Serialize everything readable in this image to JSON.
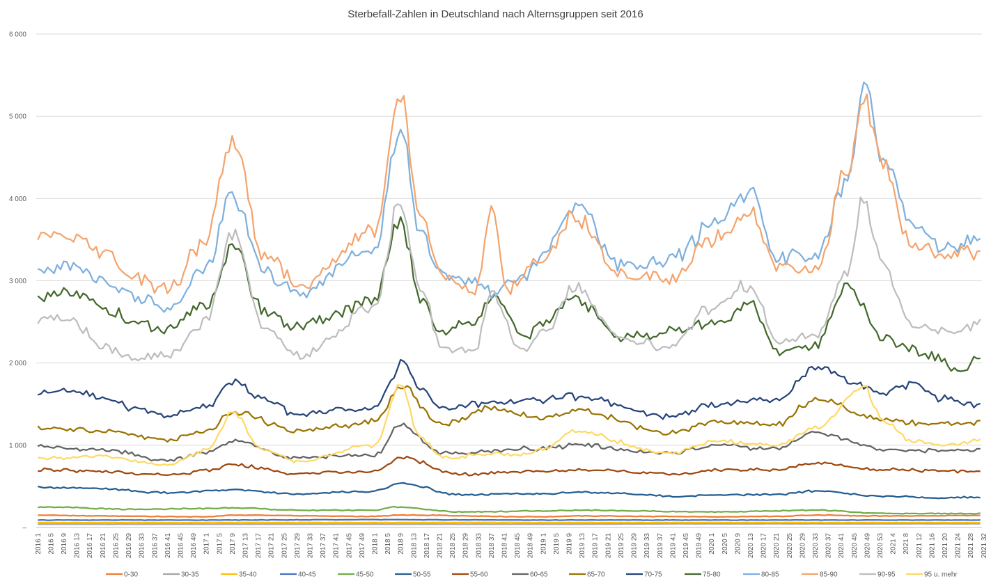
{
  "chart_data": {
    "type": "line",
    "title": "Sterbefall-Zahlen in Deutschland nach Alternsgruppen seit 2016",
    "xlabel": "",
    "ylabel": "",
    "ylim": [
      0,
      6000
    ],
    "yticks": [
      "–",
      "1 000",
      "2 000",
      "3 000",
      "4 000",
      "5 000",
      "6 000"
    ],
    "grid": true,
    "legend_position": "bottom",
    "x_tick_labels": [
      "2016 1",
      "2016 5",
      "2016 9",
      "2016 13",
      "2016 17",
      "2016 21",
      "2016 25",
      "2016 29",
      "2016 33",
      "2016 37",
      "2016 41",
      "2016 45",
      "2016 49",
      "2017 1",
      "2017 5",
      "2017 9",
      "2017 13",
      "2017 17",
      "2017 21",
      "2017 25",
      "2017 29",
      "2017 33",
      "2017 37",
      "2017 41",
      "2017 45",
      "2017 49",
      "2018 1",
      "2018 5",
      "2018 9",
      "2018 13",
      "2018 17",
      "2018 21",
      "2018 25",
      "2018 29",
      "2018 33",
      "2018 37",
      "2018 41",
      "2018 45",
      "2018 49",
      "2019 1",
      "2019 5",
      "2019 9",
      "2019 13",
      "2019 17",
      "2019 21",
      "2019 25",
      "2019 29",
      "2019 33",
      "2019 37",
      "2019 41",
      "2019 45",
      "2019 49",
      "2020 1",
      "2020 5",
      "2020 9",
      "2020 13",
      "2020 17",
      "2020 21",
      "2020 25",
      "2020 29",
      "2020 33",
      "2020 37",
      "2020 41",
      "2020 45",
      "2020 49",
      "2020 53",
      "2021 4",
      "2021 8",
      "2021 12",
      "2021 16",
      "2021 20",
      "2021 24",
      "2021 28",
      "2021 32"
    ],
    "series": [
      {
        "name": "0-30",
        "color": "#ED7D31",
        "anchors": [
          [
            0,
            150
          ],
          [
            20,
            140
          ],
          [
            52,
            130
          ],
          [
            60,
            150
          ],
          [
            104,
            135
          ],
          [
            112,
            150
          ],
          [
            156,
            130
          ],
          [
            166,
            140
          ],
          [
            209,
            130
          ],
          [
            228,
            135
          ],
          [
            240,
            150
          ],
          [
            261,
            140
          ],
          [
            291,
            145
          ]
        ]
      },
      {
        "name": "30-35",
        "color": "#A5A5A5",
        "anchors": [
          [
            0,
            40
          ],
          [
            52,
            40
          ],
          [
            104,
            40
          ],
          [
            156,
            40
          ],
          [
            209,
            45
          ],
          [
            261,
            45
          ],
          [
            291,
            45
          ]
        ]
      },
      {
        "name": "35-40",
        "color": "#FFC000",
        "anchors": [
          [
            0,
            60
          ],
          [
            52,
            60
          ],
          [
            104,
            60
          ],
          [
            156,
            60
          ],
          [
            209,
            60
          ],
          [
            261,
            60
          ],
          [
            291,
            60
          ]
        ]
      },
      {
        "name": "40-45",
        "color": "#4472C4",
        "anchors": [
          [
            0,
            90
          ],
          [
            52,
            90
          ],
          [
            104,
            95
          ],
          [
            156,
            90
          ],
          [
            209,
            90
          ],
          [
            261,
            90
          ],
          [
            291,
            90
          ]
        ]
      },
      {
        "name": "45-50",
        "color": "#70AD47",
        "anchors": [
          [
            0,
            250
          ],
          [
            30,
            220
          ],
          [
            52,
            230
          ],
          [
            60,
            240
          ],
          [
            80,
            210
          ],
          [
            104,
            210
          ],
          [
            110,
            250
          ],
          [
            130,
            190
          ],
          [
            156,
            200
          ],
          [
            166,
            210
          ],
          [
            209,
            190
          ],
          [
            240,
            210
          ],
          [
            261,
            170
          ],
          [
            291,
            170
          ]
        ]
      },
      {
        "name": "50-55",
        "color": "#255E91",
        "anchors": [
          [
            0,
            490
          ],
          [
            20,
            470
          ],
          [
            40,
            420
          ],
          [
            52,
            440
          ],
          [
            60,
            460
          ],
          [
            80,
            410
          ],
          [
            104,
            440
          ],
          [
            112,
            540
          ],
          [
            130,
            400
          ],
          [
            156,
            410
          ],
          [
            166,
            430
          ],
          [
            200,
            380
          ],
          [
            209,
            400
          ],
          [
            228,
            400
          ],
          [
            240,
            440
          ],
          [
            261,
            380
          ],
          [
            280,
            360
          ],
          [
            291,
            370
          ]
        ]
      },
      {
        "name": "55-60",
        "color": "#9E480E",
        "anchors": [
          [
            0,
            700
          ],
          [
            20,
            680
          ],
          [
            40,
            640
          ],
          [
            52,
            690
          ],
          [
            60,
            760
          ],
          [
            80,
            660
          ],
          [
            104,
            680
          ],
          [
            112,
            850
          ],
          [
            130,
            650
          ],
          [
            156,
            680
          ],
          [
            166,
            700
          ],
          [
            200,
            650
          ],
          [
            209,
            700
          ],
          [
            228,
            700
          ],
          [
            240,
            780
          ],
          [
            261,
            700
          ],
          [
            280,
            690
          ],
          [
            291,
            680
          ]
        ]
      },
      {
        "name": "60-65",
        "color": "#636363",
        "anchors": [
          [
            0,
            980
          ],
          [
            20,
            940
          ],
          [
            40,
            820
          ],
          [
            52,
            900
          ],
          [
            60,
            1050
          ],
          [
            80,
            850
          ],
          [
            104,
            880
          ],
          [
            112,
            1240
          ],
          [
            125,
            900
          ],
          [
            156,
            960
          ],
          [
            166,
            1000
          ],
          [
            195,
            900
          ],
          [
            209,
            1000
          ],
          [
            228,
            950
          ],
          [
            240,
            1150
          ],
          [
            261,
            950
          ],
          [
            280,
            930
          ],
          [
            291,
            950
          ]
        ]
      },
      {
        "name": "65-70",
        "color": "#997300",
        "anchors": [
          [
            0,
            1210
          ],
          [
            20,
            1180
          ],
          [
            40,
            1060
          ],
          [
            52,
            1160
          ],
          [
            60,
            1400
          ],
          [
            80,
            1180
          ],
          [
            104,
            1280
          ],
          [
            112,
            1700
          ],
          [
            125,
            1250
          ],
          [
            140,
            1450
          ],
          [
            156,
            1330
          ],
          [
            166,
            1420
          ],
          [
            195,
            1150
          ],
          [
            209,
            1290
          ],
          [
            228,
            1250
          ],
          [
            240,
            1550
          ],
          [
            261,
            1300
          ],
          [
            280,
            1250
          ],
          [
            291,
            1280
          ]
        ]
      },
      {
        "name": "70-75",
        "color": "#264478",
        "anchors": [
          [
            0,
            1620
          ],
          [
            10,
            1660
          ],
          [
            20,
            1580
          ],
          [
            30,
            1440
          ],
          [
            40,
            1360
          ],
          [
            52,
            1460
          ],
          [
            60,
            1780
          ],
          [
            70,
            1540
          ],
          [
            80,
            1380
          ],
          [
            104,
            1460
          ],
          [
            110,
            1800
          ],
          [
            112,
            2000
          ],
          [
            118,
            1700
          ],
          [
            125,
            1450
          ],
          [
            140,
            1520
          ],
          [
            156,
            1560
          ],
          [
            166,
            1590
          ],
          [
            195,
            1350
          ],
          [
            209,
            1500
          ],
          [
            228,
            1550
          ],
          [
            240,
            1920
          ],
          [
            261,
            1650
          ],
          [
            270,
            1740
          ],
          [
            280,
            1560
          ],
          [
            291,
            1500
          ]
        ]
      },
      {
        "name": "75-80",
        "color": "#43682B",
        "anchors": [
          [
            0,
            2800
          ],
          [
            10,
            2850
          ],
          [
            20,
            2700
          ],
          [
            30,
            2480
          ],
          [
            40,
            2400
          ],
          [
            52,
            2700
          ],
          [
            60,
            3400
          ],
          [
            70,
            2620
          ],
          [
            80,
            2440
          ],
          [
            104,
            2750
          ],
          [
            112,
            3750
          ],
          [
            118,
            2800
          ],
          [
            125,
            2350
          ],
          [
            135,
            2520
          ],
          [
            140,
            2830
          ],
          [
            150,
            2330
          ],
          [
            156,
            2480
          ],
          [
            166,
            2780
          ],
          [
            180,
            2320
          ],
          [
            195,
            2380
          ],
          [
            209,
            2480
          ],
          [
            220,
            2700
          ],
          [
            228,
            2150
          ],
          [
            240,
            2220
          ],
          [
            250,
            2950
          ],
          [
            261,
            2300
          ],
          [
            275,
            2100
          ],
          [
            285,
            1900
          ],
          [
            291,
            2070
          ]
        ]
      },
      {
        "name": "80-85",
        "color": "#7EB0DD",
        "anchors": [
          [
            0,
            3100
          ],
          [
            10,
            3220
          ],
          [
            20,
            3000
          ],
          [
            30,
            2800
          ],
          [
            40,
            2650
          ],
          [
            52,
            3150
          ],
          [
            60,
            4050
          ],
          [
            70,
            3130
          ],
          [
            80,
            2840
          ],
          [
            104,
            3400
          ],
          [
            112,
            4880
          ],
          [
            118,
            3600
          ],
          [
            125,
            3050
          ],
          [
            135,
            2980
          ],
          [
            140,
            2850
          ],
          [
            150,
            3050
          ],
          [
            156,
            3320
          ],
          [
            166,
            3950
          ],
          [
            180,
            3200
          ],
          [
            195,
            3250
          ],
          [
            209,
            3700
          ],
          [
            220,
            4100
          ],
          [
            228,
            3300
          ],
          [
            240,
            3300
          ],
          [
            250,
            4200
          ],
          [
            255,
            5350
          ],
          [
            261,
            4500
          ],
          [
            270,
            3700
          ],
          [
            280,
            3400
          ],
          [
            291,
            3480
          ]
        ]
      },
      {
        "name": "85-90",
        "color": "#F4A46E",
        "anchors": [
          [
            0,
            3550
          ],
          [
            10,
            3580
          ],
          [
            20,
            3350
          ],
          [
            30,
            3050
          ],
          [
            40,
            2900
          ],
          [
            52,
            3500
          ],
          [
            60,
            4700
          ],
          [
            70,
            3300
          ],
          [
            80,
            2960
          ],
          [
            104,
            3600
          ],
          [
            112,
            5280
          ],
          [
            118,
            3800
          ],
          [
            125,
            3050
          ],
          [
            135,
            2850
          ],
          [
            140,
            3850
          ],
          [
            145,
            2920
          ],
          [
            156,
            3250
          ],
          [
            166,
            3780
          ],
          [
            180,
            3050
          ],
          [
            195,
            3030
          ],
          [
            209,
            3500
          ],
          [
            220,
            3850
          ],
          [
            228,
            3150
          ],
          [
            240,
            3100
          ],
          [
            250,
            4350
          ],
          [
            255,
            5200
          ],
          [
            261,
            4500
          ],
          [
            270,
            3400
          ],
          [
            280,
            3300
          ],
          [
            291,
            3350
          ]
        ]
      },
      {
        "name": "90-95",
        "color": "#BDBDBD",
        "anchors": [
          [
            0,
            2520
          ],
          [
            10,
            2550
          ],
          [
            20,
            2200
          ],
          [
            30,
            2050
          ],
          [
            40,
            2100
          ],
          [
            52,
            2500
          ],
          [
            60,
            3600
          ],
          [
            70,
            2450
          ],
          [
            80,
            2080
          ],
          [
            104,
            2680
          ],
          [
            112,
            3980
          ],
          [
            118,
            2900
          ],
          [
            125,
            2200
          ],
          [
            135,
            2150
          ],
          [
            140,
            2850
          ],
          [
            150,
            2160
          ],
          [
            156,
            2350
          ],
          [
            166,
            2900
          ],
          [
            180,
            2300
          ],
          [
            195,
            2200
          ],
          [
            209,
            2700
          ],
          [
            220,
            2950
          ],
          [
            228,
            2250
          ],
          [
            240,
            2350
          ],
          [
            250,
            3100
          ],
          [
            255,
            4000
          ],
          [
            261,
            3200
          ],
          [
            270,
            2450
          ],
          [
            280,
            2400
          ],
          [
            291,
            2470
          ]
        ]
      },
      {
        "name": "95 u. mehr",
        "color": "#FFD966",
        "anchors": [
          [
            0,
            850
          ],
          [
            20,
            860
          ],
          [
            40,
            760
          ],
          [
            52,
            940
          ],
          [
            60,
            1380
          ],
          [
            70,
            940
          ],
          [
            80,
            800
          ],
          [
            104,
            1000
          ],
          [
            112,
            1730
          ],
          [
            118,
            1100
          ],
          [
            125,
            850
          ],
          [
            140,
            900
          ],
          [
            150,
            880
          ],
          [
            156,
            960
          ],
          [
            166,
            1160
          ],
          [
            195,
            900
          ],
          [
            209,
            1050
          ],
          [
            228,
            1000
          ],
          [
            240,
            1200
          ],
          [
            255,
            1700
          ],
          [
            261,
            1300
          ],
          [
            270,
            1050
          ],
          [
            280,
            1000
          ],
          [
            291,
            1050
          ]
        ]
      }
    ]
  }
}
